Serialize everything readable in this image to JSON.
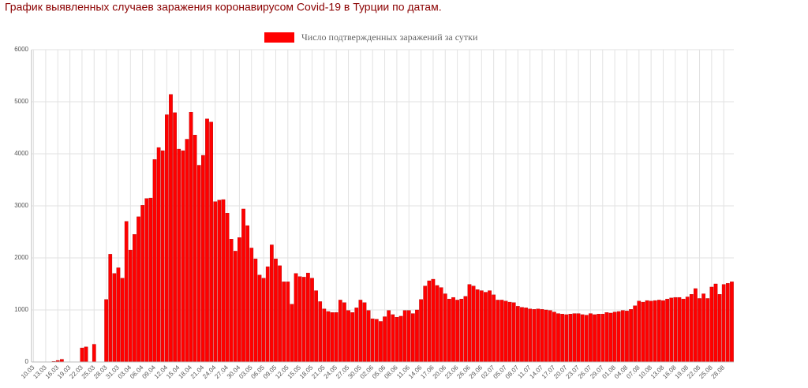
{
  "chart_data": {
    "type": "bar",
    "title": "График выявленных случаев заражения коронавирусом Covid-19 в Турции по датам.",
    "categories": [
      "10.03",
      null,
      null,
      "13.03",
      null,
      null,
      "16.03",
      null,
      null,
      "19.03",
      null,
      null,
      "22.03",
      null,
      null,
      "25.03",
      null,
      null,
      "28.03",
      null,
      null,
      "31.03",
      null,
      null,
      "03.04",
      null,
      null,
      "06.04",
      null,
      null,
      "09.04",
      null,
      null,
      "12.04",
      null,
      null,
      "15.04",
      null,
      null,
      "18.04",
      null,
      null,
      "21.04",
      null,
      null,
      "24.04",
      null,
      null,
      "27.04",
      null,
      null,
      "30.04",
      null,
      null,
      "03.05",
      null,
      null,
      "06.05",
      null,
      null,
      "09.05",
      null,
      null,
      "12.05",
      null,
      null,
      "15.05",
      null,
      null,
      "18.05",
      null,
      null,
      "21.05",
      null,
      null,
      "24.05",
      null,
      null,
      "27.05",
      null,
      null,
      "30.05",
      null,
      null,
      "02.06",
      null,
      null,
      "05.06",
      null,
      null,
      "08.06",
      null,
      null,
      "11.06",
      null,
      null,
      "14.06",
      null,
      null,
      "17.06",
      null,
      null,
      "20.06",
      null,
      null,
      "23.06",
      null,
      null,
      "26.06",
      null,
      null,
      "29.06",
      null,
      null,
      "02.07",
      null,
      null,
      "05.07",
      null,
      null,
      "08.07",
      null,
      null,
      "11.07",
      null,
      null,
      "14.07",
      null,
      null,
      "17.07",
      null,
      null,
      "20.07",
      null,
      null,
      "23.07",
      null,
      null,
      "26.07",
      null,
      null,
      "29.07",
      null,
      null,
      "01.08",
      null,
      null,
      "04.08",
      null,
      null,
      "07.08",
      null,
      null,
      "10.08",
      null,
      null,
      "13.08",
      null,
      null,
      "16.08",
      null,
      null,
      "19.08",
      null,
      null,
      "22.08",
      null,
      null,
      "25.08",
      null,
      null,
      "28.08",
      null,
      null
    ],
    "series": [
      {
        "name": "Число подтвержденных заражений за сутки",
        "color": "#ff0000",
        "values": [
          0,
          1,
          0,
          4,
          1,
          12,
          29,
          51,
          0,
          0,
          0,
          0,
          270,
          290,
          0,
          340,
          0,
          0,
          1200,
          2070,
          1700,
          1810,
          1610,
          2700,
          2150,
          2450,
          2790,
          3010,
          3140,
          3150,
          3890,
          4120,
          4060,
          4750,
          5140,
          4790,
          4090,
          4060,
          4280,
          4800,
          4360,
          3780,
          3970,
          4670,
          4610,
          3080,
          3110,
          3120,
          2860,
          2360,
          2130,
          2390,
          2940,
          2620,
          2190,
          1980,
          1670,
          1610,
          1830,
          2250,
          1980,
          1850,
          1540,
          1540,
          1110,
          1700,
          1640,
          1630,
          1710,
          1610,
          1370,
          1160,
          1020,
          970,
          950,
          950,
          1190,
          1140,
          990,
          950,
          1040,
          1190,
          1140,
          990,
          830,
          820,
          780,
          870,
          990,
          910,
          860,
          880,
          990,
          990,
          930,
          1000,
          1200,
          1460,
          1560,
          1590,
          1470,
          1430,
          1310,
          1210,
          1240,
          1190,
          1210,
          1260,
          1490,
          1460,
          1390,
          1370,
          1340,
          1370,
          1290,
          1190,
          1190,
          1170,
          1150,
          1140,
          1070,
          1050,
          1040,
          1020,
          1010,
          1020,
          1010,
          1000,
          990,
          960,
          930,
          920,
          910,
          920,
          930,
          930,
          910,
          900,
          930,
          910,
          920,
          920,
          950,
          940,
          960,
          970,
          990,
          980,
          1010,
          1080,
          1170,
          1150,
          1180,
          1170,
          1180,
          1190,
          1180,
          1210,
          1230,
          1240,
          1240,
          1210,
          1250,
          1300,
          1410,
          1220,
          1310,
          1220,
          1440,
          1500,
          1300,
          1490,
          1510,
          1540
        ]
      }
    ],
    "ylim": [
      0,
      6000
    ],
    "yticks": [
      0,
      1000,
      2000,
      3000,
      4000,
      5000,
      6000
    ],
    "grid": true
  }
}
